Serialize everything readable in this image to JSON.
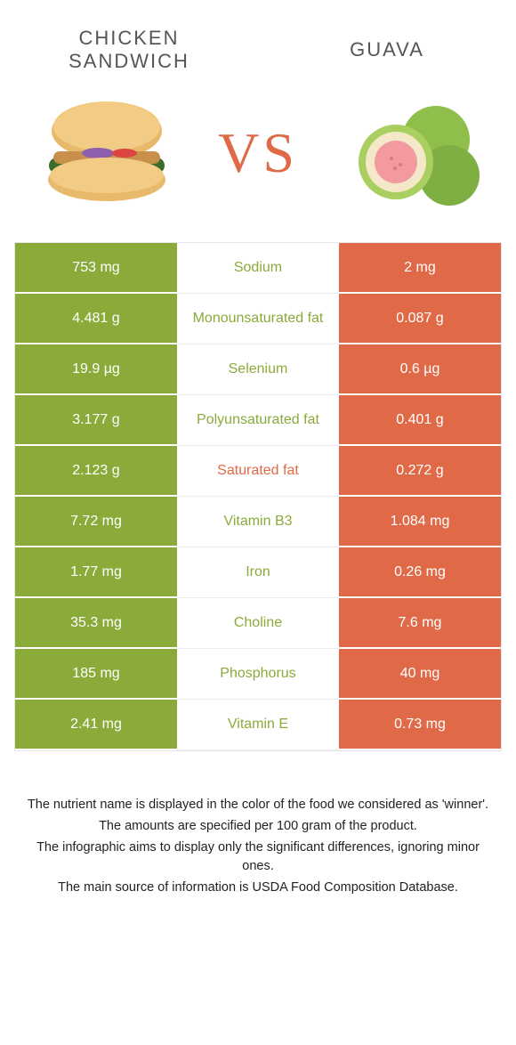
{
  "colors": {
    "left": "#8aab3a",
    "right": "#e06a48",
    "mid_left_text": "#8aab3a",
    "mid_right_text": "#e06a48"
  },
  "header": {
    "left_title": "CHICKEN SANDWICH",
    "right_title": "GUAVA",
    "vs": "VS"
  },
  "rows": [
    {
      "left": "753 mg",
      "name": "Sodium",
      "right": "2 mg",
      "winner": "left"
    },
    {
      "left": "4.481 g",
      "name": "Monounsaturated fat",
      "right": "0.087 g",
      "winner": "left"
    },
    {
      "left": "19.9 µg",
      "name": "Selenium",
      "right": "0.6 µg",
      "winner": "left"
    },
    {
      "left": "3.177 g",
      "name": "Polyunsaturated fat",
      "right": "0.401 g",
      "winner": "left"
    },
    {
      "left": "2.123 g",
      "name": "Saturated fat",
      "right": "0.272 g",
      "winner": "right"
    },
    {
      "left": "7.72 mg",
      "name": "Vitamin B3",
      "right": "1.084 mg",
      "winner": "left"
    },
    {
      "left": "1.77 mg",
      "name": "Iron",
      "right": "0.26 mg",
      "winner": "left"
    },
    {
      "left": "35.3 mg",
      "name": "Choline",
      "right": "7.6 mg",
      "winner": "left"
    },
    {
      "left": "185 mg",
      "name": "Phosphorus",
      "right": "40 mg",
      "winner": "left"
    },
    {
      "left": "2.41 mg",
      "name": "Vitamin E",
      "right": "0.73 mg",
      "winner": "left"
    }
  ],
  "footer": {
    "line1": "The nutrient name is displayed in the color of the food we considered as 'winner'.",
    "line2": "The amounts are specified per 100 gram of the product.",
    "line3": "The infographic aims to display only the significant differences, ignoring minor ones.",
    "line4": "The main source of information is USDA Food Composition Database."
  }
}
